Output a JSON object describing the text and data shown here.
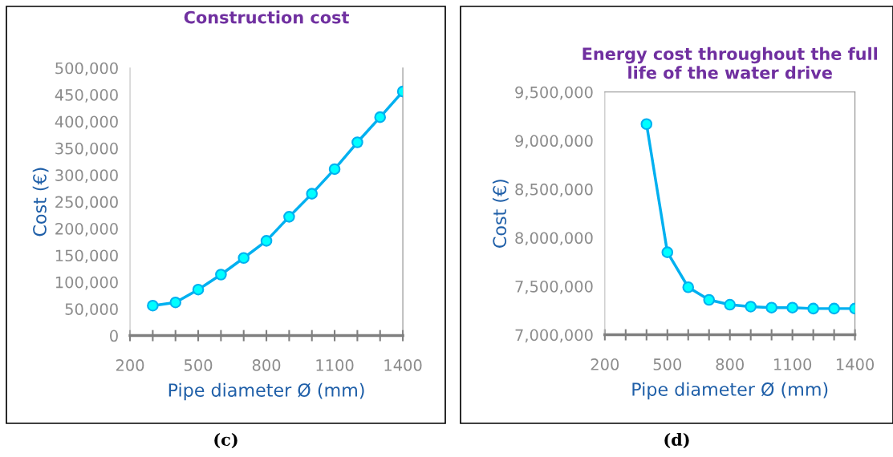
{
  "chart_data": [
    {
      "type": "line",
      "title": "Construction cost",
      "xlabel": "Pipe diameter Ø (mm)",
      "ylabel": "Cost (€)",
      "annotations": [
        "(c)"
      ],
      "marker": "circle",
      "line_style": "solid",
      "grid": false,
      "legend": false,
      "x": [
        300,
        400,
        500,
        600,
        700,
        800,
        900,
        1000,
        1100,
        1200,
        1300,
        1400
      ],
      "series": [
        {
          "color": "#00b0f0",
          "values": [
            56000,
            62000,
            86000,
            114000,
            145000,
            177000,
            222000,
            265000,
            311000,
            361000,
            408000,
            456000
          ]
        }
      ],
      "xlim": [
        200,
        1400
      ],
      "xticks": [
        200,
        {
          "value": 300,
          "label": null
        },
        {
          "value": 400,
          "label": null
        },
        500,
        {
          "value": 600,
          "label": null
        },
        {
          "value": 700,
          "label": null
        },
        800,
        {
          "value": 900,
          "label": null
        },
        {
          "value": 1000,
          "label": null
        },
        1100,
        {
          "value": 1200,
          "label": null
        },
        {
          "value": 1300,
          "label": null
        },
        1400
      ],
      "ylim": [
        0,
        500000
      ],
      "yticks": [
        0,
        {
          "value": 50000,
          "label": "50,000"
        },
        {
          "value": 100000,
          "label": "100,000"
        },
        {
          "value": 150000,
          "label": "150,000"
        },
        {
          "value": 200000,
          "label": "200,000"
        },
        {
          "value": 250000,
          "label": "250,000"
        },
        {
          "value": 300000,
          "label": "300,000"
        },
        {
          "value": 350000,
          "label": "350,000"
        },
        {
          "value": 400000,
          "label": "400,000"
        },
        {
          "value": 450000,
          "label": "450,000"
        },
        {
          "value": 500000,
          "label": "500,000"
        }
      ]
    },
    {
      "type": "line",
      "title": "Energy cost throughout the full\nlife of the water drive",
      "xlabel": "Pipe diameter Ø (mm)",
      "ylabel": "Cost (€)",
      "annotations": [
        "(d)"
      ],
      "marker": "circle",
      "line_style": "solid",
      "grid": false,
      "legend": false,
      "x": [
        400,
        500,
        600,
        700,
        800,
        900,
        1000,
        1100,
        1200,
        1300,
        1400
      ],
      "series": [
        {
          "color": "#00b0f0",
          "values": [
            9170000,
            7850000,
            7490000,
            7360000,
            7310000,
            7290000,
            7280000,
            7280000,
            7270000,
            7270000,
            7270000
          ]
        }
      ],
      "xlim": [
        200,
        1400
      ],
      "xticks": [
        200,
        {
          "value": 300,
          "label": null
        },
        {
          "value": 400,
          "label": null
        },
        500,
        {
          "value": 600,
          "label": null
        },
        {
          "value": 700,
          "label": null
        },
        800,
        {
          "value": 900,
          "label": null
        },
        {
          "value": 1000,
          "label": null
        },
        1100,
        {
          "value": 1200,
          "label": null
        },
        {
          "value": 1300,
          "label": null
        },
        1400
      ],
      "ylim": [
        7000000,
        9500000
      ],
      "yticks": [
        {
          "value": 7000000,
          "label": "7,000,000"
        },
        {
          "value": 7500000,
          "label": "7,500,000"
        },
        {
          "value": 8000000,
          "label": "8,000,000"
        },
        {
          "value": 8500000,
          "label": "8,500,000"
        },
        {
          "value": 9000000,
          "label": "9,000,000"
        },
        {
          "value": 9500000,
          "label": "9,500,000"
        }
      ]
    }
  ]
}
